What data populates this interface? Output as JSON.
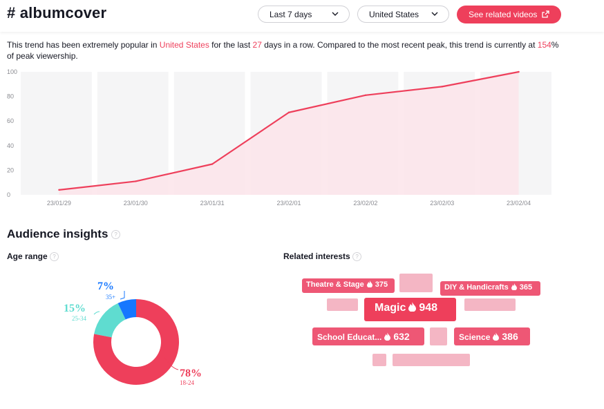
{
  "header": {
    "hashtag": "# albumcover",
    "period_dropdown": "Last 7 days",
    "country_dropdown": "United States",
    "related_videos_button": "See related videos"
  },
  "trend_summary": {
    "part1": "This trend has been extremely popular in ",
    "country": "United States",
    "part2": " for the last ",
    "days": "27",
    "part3": " days in a row. Compared to the most recent peak, this trend is currently at ",
    "percent": "154",
    "part4": "% of peak viewership."
  },
  "chart_data": {
    "type": "area",
    "x": [
      "23/01/29",
      "23/01/30",
      "23/01/31",
      "23/02/01",
      "23/02/02",
      "23/02/03",
      "23/02/04"
    ],
    "y_ticks": [
      0,
      20,
      40,
      60,
      80,
      100
    ],
    "ylim": [
      0,
      100
    ],
    "values": [
      4,
      11,
      25,
      67,
      81,
      88,
      100
    ],
    "grid": "vertical bands",
    "color": "#ee3f5b",
    "fill": "#fce4ea",
    "title": "",
    "xlabel": "",
    "ylabel": ""
  },
  "audience": {
    "title": "Audience insights",
    "age_title": "Age range",
    "interests_title": "Related interests",
    "age": [
      {
        "percent": "78%",
        "range": "18-24",
        "value": 78,
        "color": "#ee3f5b"
      },
      {
        "percent": "15%",
        "range": "25-34",
        "value": 15,
        "color": "#5fdcd0"
      },
      {
        "percent": "7%",
        "range": "35+",
        "value": 7,
        "color": "#1677ff"
      }
    ],
    "interests": [
      {
        "label": "Theatre & Stage",
        "score": "375"
      },
      {
        "label": "DIY & Handicrafts",
        "score": "365"
      },
      {
        "label": "Magic",
        "score": "948"
      },
      {
        "label": "School Educat...",
        "score": "632"
      },
      {
        "label": "Science",
        "score": "386"
      }
    ]
  }
}
